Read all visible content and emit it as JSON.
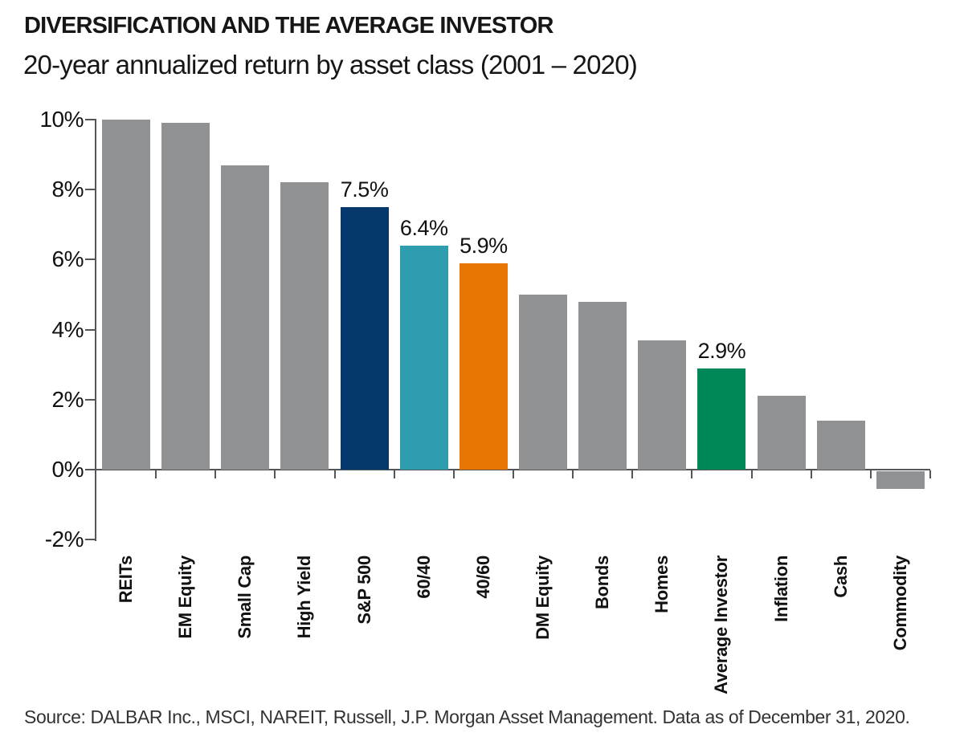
{
  "chart_data": {
    "type": "bar",
    "title": "DIVERSIFICATION AND THE AVERAGE INVESTOR",
    "subtitle": "20-year annualized return by asset class (2001 – 2020)",
    "xlabel": "",
    "ylabel": "",
    "ylim": [
      -2,
      10
    ],
    "grid": false,
    "legend": "none",
    "yticks": [
      {
        "label": "10%",
        "value": 10
      },
      {
        "label": "8%",
        "value": 8
      },
      {
        "label": "6%",
        "value": 6
      },
      {
        "label": "4%",
        "value": 4
      },
      {
        "label": "2%",
        "value": 2
      },
      {
        "label": "0%",
        "value": 0
      },
      {
        "label": "-2%",
        "value": -2
      }
    ],
    "categories": [
      "REITs",
      "EM Equity",
      "Small Cap",
      "High Yield",
      "S&P 500",
      "60/40",
      "40/60",
      "DM Equity",
      "Bonds",
      "Homes",
      "Average Investor",
      "Inflation",
      "Cash",
      "Commodity"
    ],
    "values": [
      10.0,
      9.9,
      8.7,
      8.2,
      7.5,
      6.4,
      5.9,
      5.0,
      4.8,
      3.7,
      2.9,
      2.1,
      1.4,
      -0.5
    ],
    "value_labels": [
      "",
      "",
      "",
      "",
      "7.5%",
      "6.4%",
      "5.9%",
      "",
      "",
      "",
      "2.9%",
      "",
      "",
      ""
    ],
    "bar_colors": [
      "gray",
      "gray",
      "gray",
      "gray",
      "navy",
      "teal",
      "orange",
      "gray",
      "gray",
      "gray",
      "green",
      "gray",
      "gray",
      "gray"
    ],
    "palette": {
      "gray": "#8f9193",
      "navy": "#05386d",
      "teal": "#2d9daf",
      "orange": "#e87603",
      "green": "#008758"
    },
    "axis_color": "#55565a"
  },
  "source_line": "Source: DALBAR Inc., MSCI, NAREIT, Russell, J.P. Morgan Asset Management. Data as of December 31, 2020."
}
